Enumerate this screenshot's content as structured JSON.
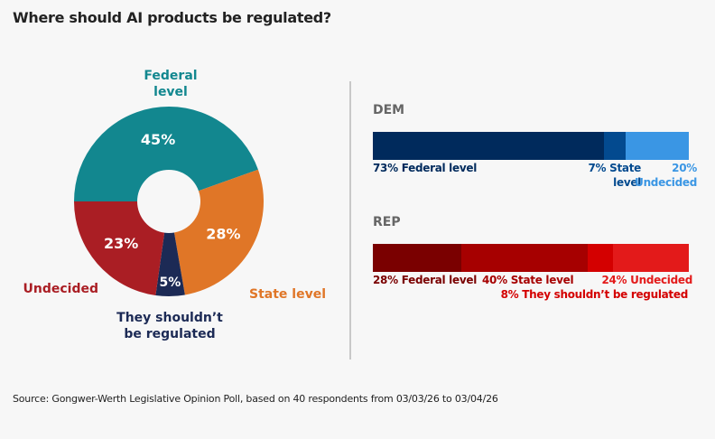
{
  "title": "Where should AI products be regulated?",
  "source": "Source: Gongwer-Werth Legislative Opinion Poll, based on 40 respondents from 03/03/26 to 03/04/26",
  "chart_data": [
    {
      "type": "pie",
      "donut": true,
      "categories": [
        "Federal level",
        "State level",
        "They shouldn’t be regulated",
        "Undecided"
      ],
      "values": [
        45,
        28,
        5,
        23
      ],
      "value_labels": [
        "45%",
        "28%",
        "5%",
        "23%"
      ],
      "colors": [
        "#12878f",
        "#e07627",
        "#1c2a55",
        "#aa1e24"
      ]
    },
    {
      "type": "bar",
      "stacked": true,
      "orientation": "horizontal",
      "categories": [
        "DEM",
        "REP"
      ],
      "series": [
        {
          "party": "DEM",
          "segments": [
            {
              "label": "73% Federal level",
              "value": 73,
              "color": "#002a5c"
            },
            {
              "label": "7% State level",
              "value": 7,
              "color": "#034a8f"
            },
            {
              "label": "20% Undecided",
              "value": 20,
              "color": "#3a96e4"
            }
          ]
        },
        {
          "party": "REP",
          "segments": [
            {
              "label": "28% Federal level",
              "value": 28,
              "color": "#7a0000"
            },
            {
              "label": "40% State level",
              "value": 40,
              "color": "#a60000"
            },
            {
              "label": "8% They shouldn’t be regulated",
              "value": 8,
              "color": "#d40000"
            },
            {
              "label": "24% Undecided",
              "value": 24,
              "color": "#e31a1a"
            }
          ]
        }
      ],
      "xlim": [
        0,
        100
      ]
    }
  ]
}
